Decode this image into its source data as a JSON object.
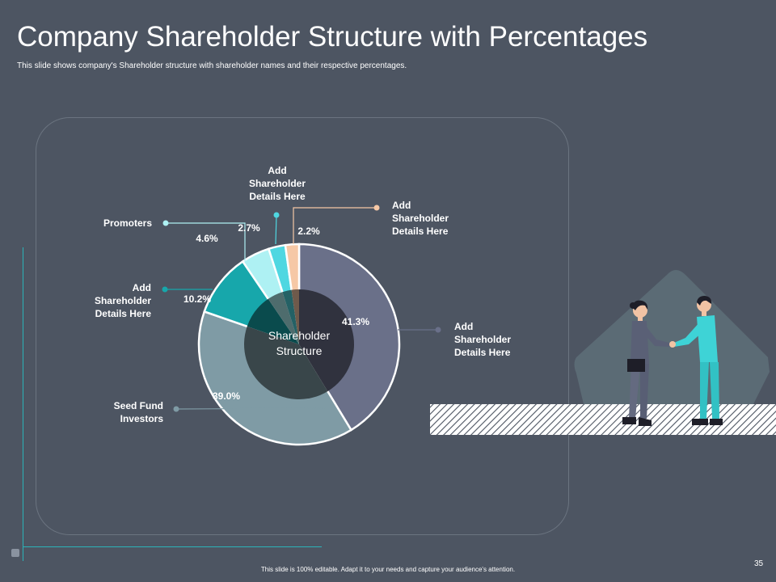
{
  "slide": {
    "title": "Company Shareholder Structure with Percentages",
    "subtitle": "This slide shows company's Shareholder structure with shareholder names and their respective percentages.",
    "footer": "This slide is 100% editable. Adapt it to your needs and capture your audience's attention.",
    "page_number": "35"
  },
  "chart_data": {
    "type": "pie",
    "title": "",
    "center_label": [
      "Shareholder",
      "Structure"
    ],
    "slices": [
      {
        "label": [
          "Add",
          "Shareholder",
          "Details Here"
        ],
        "value": 41.3,
        "display": "41.3%",
        "color": "#6a7089"
      },
      {
        "label": [
          "Seed Fund",
          "Investors"
        ],
        "value": 39.0,
        "display": "39.0%",
        "color": "#7f9ba5"
      },
      {
        "label": [
          "Add",
          "Shareholder",
          "Details Here"
        ],
        "value": 10.2,
        "display": "10.2%",
        "color": "#17a7ab"
      },
      {
        "label": [
          "Promoters"
        ],
        "value": 4.6,
        "display": "4.6%",
        "color": "#aef1f3"
      },
      {
        "label": [
          "Add",
          "Shareholder",
          "Details Here"
        ],
        "value": 2.7,
        "display": "2.7%",
        "color": "#4fd7e1"
      },
      {
        "label": [
          "Add",
          "Shareholder",
          "Details Here"
        ],
        "value": 2.2,
        "display": "2.2%",
        "color": "#f6c8a6"
      }
    ],
    "leader_colors": [
      "#6a7089",
      "#7f9ba5",
      "#17a7ab",
      "#aef1f3",
      "#4fd7e1",
      "#f6c8a6"
    ]
  }
}
